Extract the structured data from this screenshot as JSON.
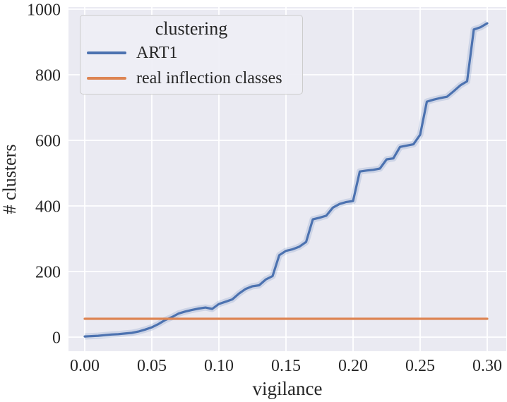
{
  "figure": {
    "background": "#ffffff",
    "plot_background": "#eaeaf2",
    "grid_color": "#ffffff",
    "text_color": "#262626"
  },
  "legend": {
    "title": "clustering",
    "entries": [
      {
        "label": "ART1",
        "color": "#4c72b0"
      },
      {
        "label": "real inflection classes",
        "color": "#dd8452"
      }
    ]
  },
  "chart_data": {
    "type": "line",
    "title": "",
    "xlabel": "vigilance",
    "ylabel": "# clusters",
    "grid": true,
    "legend_position": "upper left",
    "xlim": [
      -0.012,
      0.315
    ],
    "ylim": [
      -40,
      1040
    ],
    "x_ticks": [
      0.0,
      0.05,
      0.1,
      0.15,
      0.2,
      0.25,
      0.3
    ],
    "x_tick_labels": [
      "0.00",
      "0.05",
      "0.10",
      "0.15",
      "0.20",
      "0.25",
      "0.30"
    ],
    "y_ticks": [
      0,
      200,
      400,
      600,
      800,
      1000
    ],
    "y_tick_labels": [
      "0",
      "200",
      "400",
      "600",
      "800",
      "1000"
    ],
    "x": [
      0.0,
      0.005,
      0.01,
      0.015,
      0.02,
      0.025,
      0.03,
      0.035,
      0.04,
      0.045,
      0.05,
      0.055,
      0.06,
      0.065,
      0.07,
      0.075,
      0.08,
      0.085,
      0.09,
      0.095,
      0.1,
      0.105,
      0.11,
      0.115,
      0.12,
      0.125,
      0.13,
      0.135,
      0.14,
      0.145,
      0.15,
      0.155,
      0.16,
      0.165,
      0.17,
      0.175,
      0.18,
      0.185,
      0.19,
      0.195,
      0.2,
      0.205,
      0.21,
      0.215,
      0.22,
      0.225,
      0.23,
      0.235,
      0.24,
      0.245,
      0.25,
      0.255,
      0.26,
      0.265,
      0.27,
      0.275,
      0.28,
      0.285,
      0.29,
      0.295,
      0.3
    ],
    "series": [
      {
        "name": "ART1",
        "color": "#4c72b0",
        "values": [
          2,
          3,
          4,
          6,
          8,
          9,
          11,
          13,
          17,
          23,
          30,
          40,
          52,
          61,
          72,
          78,
          83,
          87,
          90,
          86,
          101,
          108,
          115,
          133,
          147,
          155,
          158,
          176,
          186,
          250,
          263,
          268,
          276,
          290,
          359,
          364,
          370,
          395,
          406,
          412,
          415,
          505,
          508,
          510,
          514,
          542,
          545,
          580,
          584,
          588,
          617,
          718,
          724,
          729,
          733,
          750,
          768,
          780,
          938,
          945,
          957
        ]
      },
      {
        "name": "real inflection classes",
        "color": "#dd8452",
        "constant": 56
      }
    ]
  }
}
